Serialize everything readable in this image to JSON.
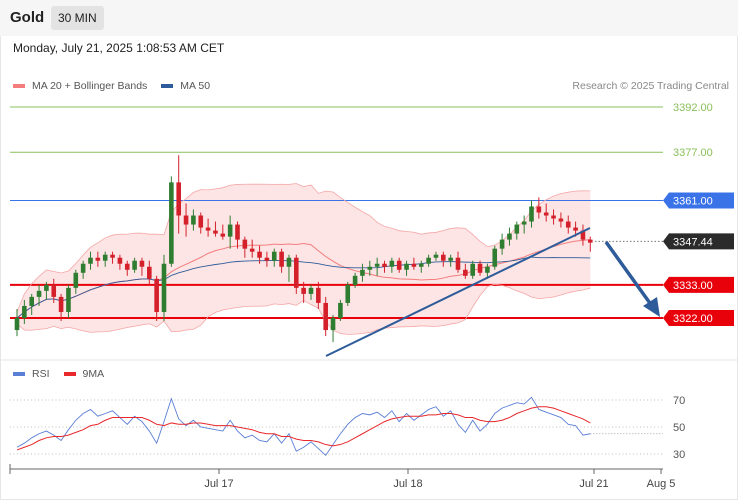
{
  "header": {
    "instrument": "Gold",
    "timeframe": "30 MIN"
  },
  "timestamp": "Monday, July 21, 2025 1:08:53 AM CET",
  "legend": {
    "main": [
      {
        "label": "MA 20 + Bollinger Bands",
        "color": "#f47c7c"
      },
      {
        "label": "MA 50",
        "color": "#2e5c9a"
      }
    ],
    "rsi": [
      {
        "label": "RSI",
        "color": "#5b7fd6"
      },
      {
        "label": "9MA",
        "color": "#e8282b"
      }
    ]
  },
  "copyright": "Research © 2025 Trading Central",
  "colors": {
    "up_candle": "#2f7d31",
    "down_candle": "#d3202a",
    "resistance": "#8ac05a",
    "pivot": "#3a73e8",
    "support": "#e8000b",
    "trendline": "#2e5c9a",
    "bollinger": "#fde0e0"
  },
  "chart_data": [
    {
      "type": "candlestick",
      "ylim": [
        3322,
        3392
      ],
      "x_ticks": [
        "Jul 17",
        "Jul 18",
        "Jul 21",
        "Aug 5"
      ],
      "levels": [
        {
          "value": 3392.0,
          "label": "3392.00",
          "kind": "resistance"
        },
        {
          "value": 3377.0,
          "label": "3377.00",
          "kind": "resistance"
        },
        {
          "value": 3361.0,
          "label": "3361.00",
          "kind": "pivot"
        },
        {
          "value": 3347.44,
          "label": "3347.44",
          "kind": "last_price"
        },
        {
          "value": 3333.0,
          "label": "3333.00",
          "kind": "support"
        },
        {
          "value": 3322.0,
          "label": "3322.00",
          "kind": "support"
        }
      ],
      "last_price": 3347.44,
      "ohlc": [
        [
          3318,
          3325,
          3316,
          3322
        ],
        [
          3322,
          3328,
          3320,
          3326
        ],
        [
          3326,
          3330,
          3323,
          3329
        ],
        [
          3329,
          3333,
          3326,
          3331
        ],
        [
          3331,
          3334,
          3328,
          3333
        ],
        [
          3333,
          3335,
          3327,
          3329
        ],
        [
          3329,
          3330,
          3321,
          3324
        ],
        [
          3324,
          3333,
          3322,
          3332
        ],
        [
          3332,
          3338,
          3330,
          3337
        ],
        [
          3337,
          3341,
          3335,
          3340
        ],
        [
          3340,
          3344,
          3338,
          3342
        ],
        [
          3342,
          3344,
          3339,
          3341
        ],
        [
          3341,
          3344,
          3339,
          3343
        ],
        [
          3343,
          3344,
          3340,
          3342
        ],
        [
          3342,
          3343,
          3338,
          3340
        ],
        [
          3340,
          3341,
          3336,
          3338
        ],
        [
          3338,
          3342,
          3337,
          3341
        ],
        [
          3341,
          3342,
          3336,
          3339
        ],
        [
          3339,
          3341,
          3333,
          3335
        ],
        [
          3335,
          3336,
          3321,
          3324
        ],
        [
          3324,
          3343,
          3321,
          3340
        ],
        [
          3340,
          3369,
          3339,
          3367
        ],
        [
          3367,
          3376,
          3350,
          3356
        ],
        [
          3356,
          3360,
          3349,
          3353
        ],
        [
          3353,
          3358,
          3351,
          3356
        ],
        [
          3356,
          3357,
          3350,
          3352
        ],
        [
          3352,
          3355,
          3349,
          3351
        ],
        [
          3351,
          3354,
          3349,
          3350
        ],
        [
          3350,
          3353,
          3348,
          3349
        ],
        [
          3349,
          3356,
          3345,
          3353
        ],
        [
          3353,
          3354,
          3345,
          3348
        ],
        [
          3348,
          3349,
          3342,
          3345
        ],
        [
          3345,
          3348,
          3342,
          3344
        ],
        [
          3344,
          3346,
          3340,
          3342
        ],
        [
          3342,
          3344,
          3339,
          3341
        ],
        [
          3341,
          3345,
          3339,
          3344
        ],
        [
          3344,
          3345,
          3337,
          3339
        ],
        [
          3339,
          3343,
          3334,
          3342
        ],
        [
          3342,
          3343,
          3330,
          3332
        ],
        [
          3332,
          3334,
          3327,
          3330
        ],
        [
          3330,
          3333,
          3328,
          3332
        ],
        [
          3332,
          3334,
          3325,
          3327
        ],
        [
          3327,
          3329,
          3316,
          3318
        ],
        [
          3318,
          3323,
          3314,
          3322
        ],
        [
          3322,
          3328,
          3321,
          3327
        ],
        [
          3327,
          3334,
          3326,
          3333
        ],
        [
          3333,
          3337,
          3332,
          3336
        ],
        [
          3336,
          3340,
          3334,
          3338
        ],
        [
          3338,
          3341,
          3336,
          3339
        ],
        [
          3339,
          3342,
          3336,
          3340
        ],
        [
          3340,
          3341,
          3337,
          3339
        ],
        [
          3339,
          3342,
          3337,
          3341
        ],
        [
          3341,
          3342,
          3337,
          3338
        ],
        [
          3338,
          3341,
          3336,
          3340
        ],
        [
          3340,
          3342,
          3338,
          3339
        ],
        [
          3339,
          3341,
          3337,
          3340
        ],
        [
          3340,
          3343,
          3339,
          3342
        ],
        [
          3342,
          3344,
          3341,
          3343
        ],
        [
          3343,
          3344,
          3339,
          3341
        ],
        [
          3341,
          3343,
          3339,
          3342
        ],
        [
          3342,
          3344,
          3337,
          3338
        ],
        [
          3338,
          3340,
          3335,
          3336
        ],
        [
          3336,
          3341,
          3335,
          3340
        ],
        [
          3340,
          3341,
          3336,
          3337
        ],
        [
          3337,
          3340,
          3335,
          3339
        ],
        [
          3339,
          3346,
          3338,
          3345
        ],
        [
          3345,
          3350,
          3343,
          3348
        ],
        [
          3348,
          3352,
          3346,
          3350
        ],
        [
          3350,
          3354,
          3348,
          3353
        ],
        [
          3353,
          3356,
          3350,
          3354
        ],
        [
          3354,
          3361,
          3352,
          3359
        ],
        [
          3359,
          3362,
          3355,
          3357
        ],
        [
          3357,
          3360,
          3354,
          3356
        ],
        [
          3356,
          3358,
          3353,
          3355
        ],
        [
          3355,
          3357,
          3352,
          3354
        ],
        [
          3354,
          3356,
          3350,
          3352
        ],
        [
          3352,
          3354,
          3349,
          3351
        ],
        [
          3351,
          3353,
          3346,
          3348
        ],
        [
          3348,
          3349,
          3344,
          3347
        ]
      ]
    },
    {
      "type": "line",
      "name": "RSI panel",
      "ylim": [
        30,
        70
      ],
      "y_ticks": [
        30,
        50,
        70
      ],
      "series": [
        {
          "name": "RSI",
          "values": [
            35,
            38,
            42,
            45,
            47,
            44,
            40,
            48,
            55,
            60,
            63,
            58,
            60,
            62,
            57,
            52,
            58,
            54,
            47,
            38,
            54,
            71,
            56,
            51,
            55,
            50,
            49,
            48,
            47,
            55,
            47,
            42,
            44,
            40,
            39,
            45,
            38,
            45,
            32,
            35,
            39,
            34,
            29,
            37,
            45,
            52,
            57,
            60,
            59,
            61,
            57,
            62,
            54,
            60,
            55,
            59,
            63,
            65,
            58,
            62,
            52,
            46,
            55,
            47,
            52,
            60,
            64,
            66,
            68,
            67,
            72,
            63,
            61,
            59,
            57,
            52,
            51,
            44,
            45
          ]
        },
        {
          "name": "9MA",
          "values": [
            33,
            35,
            37,
            40,
            42,
            43,
            43,
            44,
            46,
            48,
            51,
            52,
            55,
            57,
            57,
            57,
            57,
            57,
            55,
            52,
            51,
            53,
            52,
            52,
            53,
            53,
            52,
            51,
            51,
            51,
            50,
            49,
            48,
            46,
            45,
            45,
            43,
            43,
            41,
            40,
            40,
            39,
            37,
            36,
            37,
            39,
            42,
            45,
            48,
            51,
            54,
            56,
            57,
            58,
            58,
            58,
            59,
            59,
            60,
            60,
            59,
            57,
            57,
            55,
            54,
            54,
            55,
            57,
            60,
            62,
            64,
            65,
            65,
            64,
            62,
            60,
            58,
            56,
            53
          ]
        }
      ]
    }
  ]
}
